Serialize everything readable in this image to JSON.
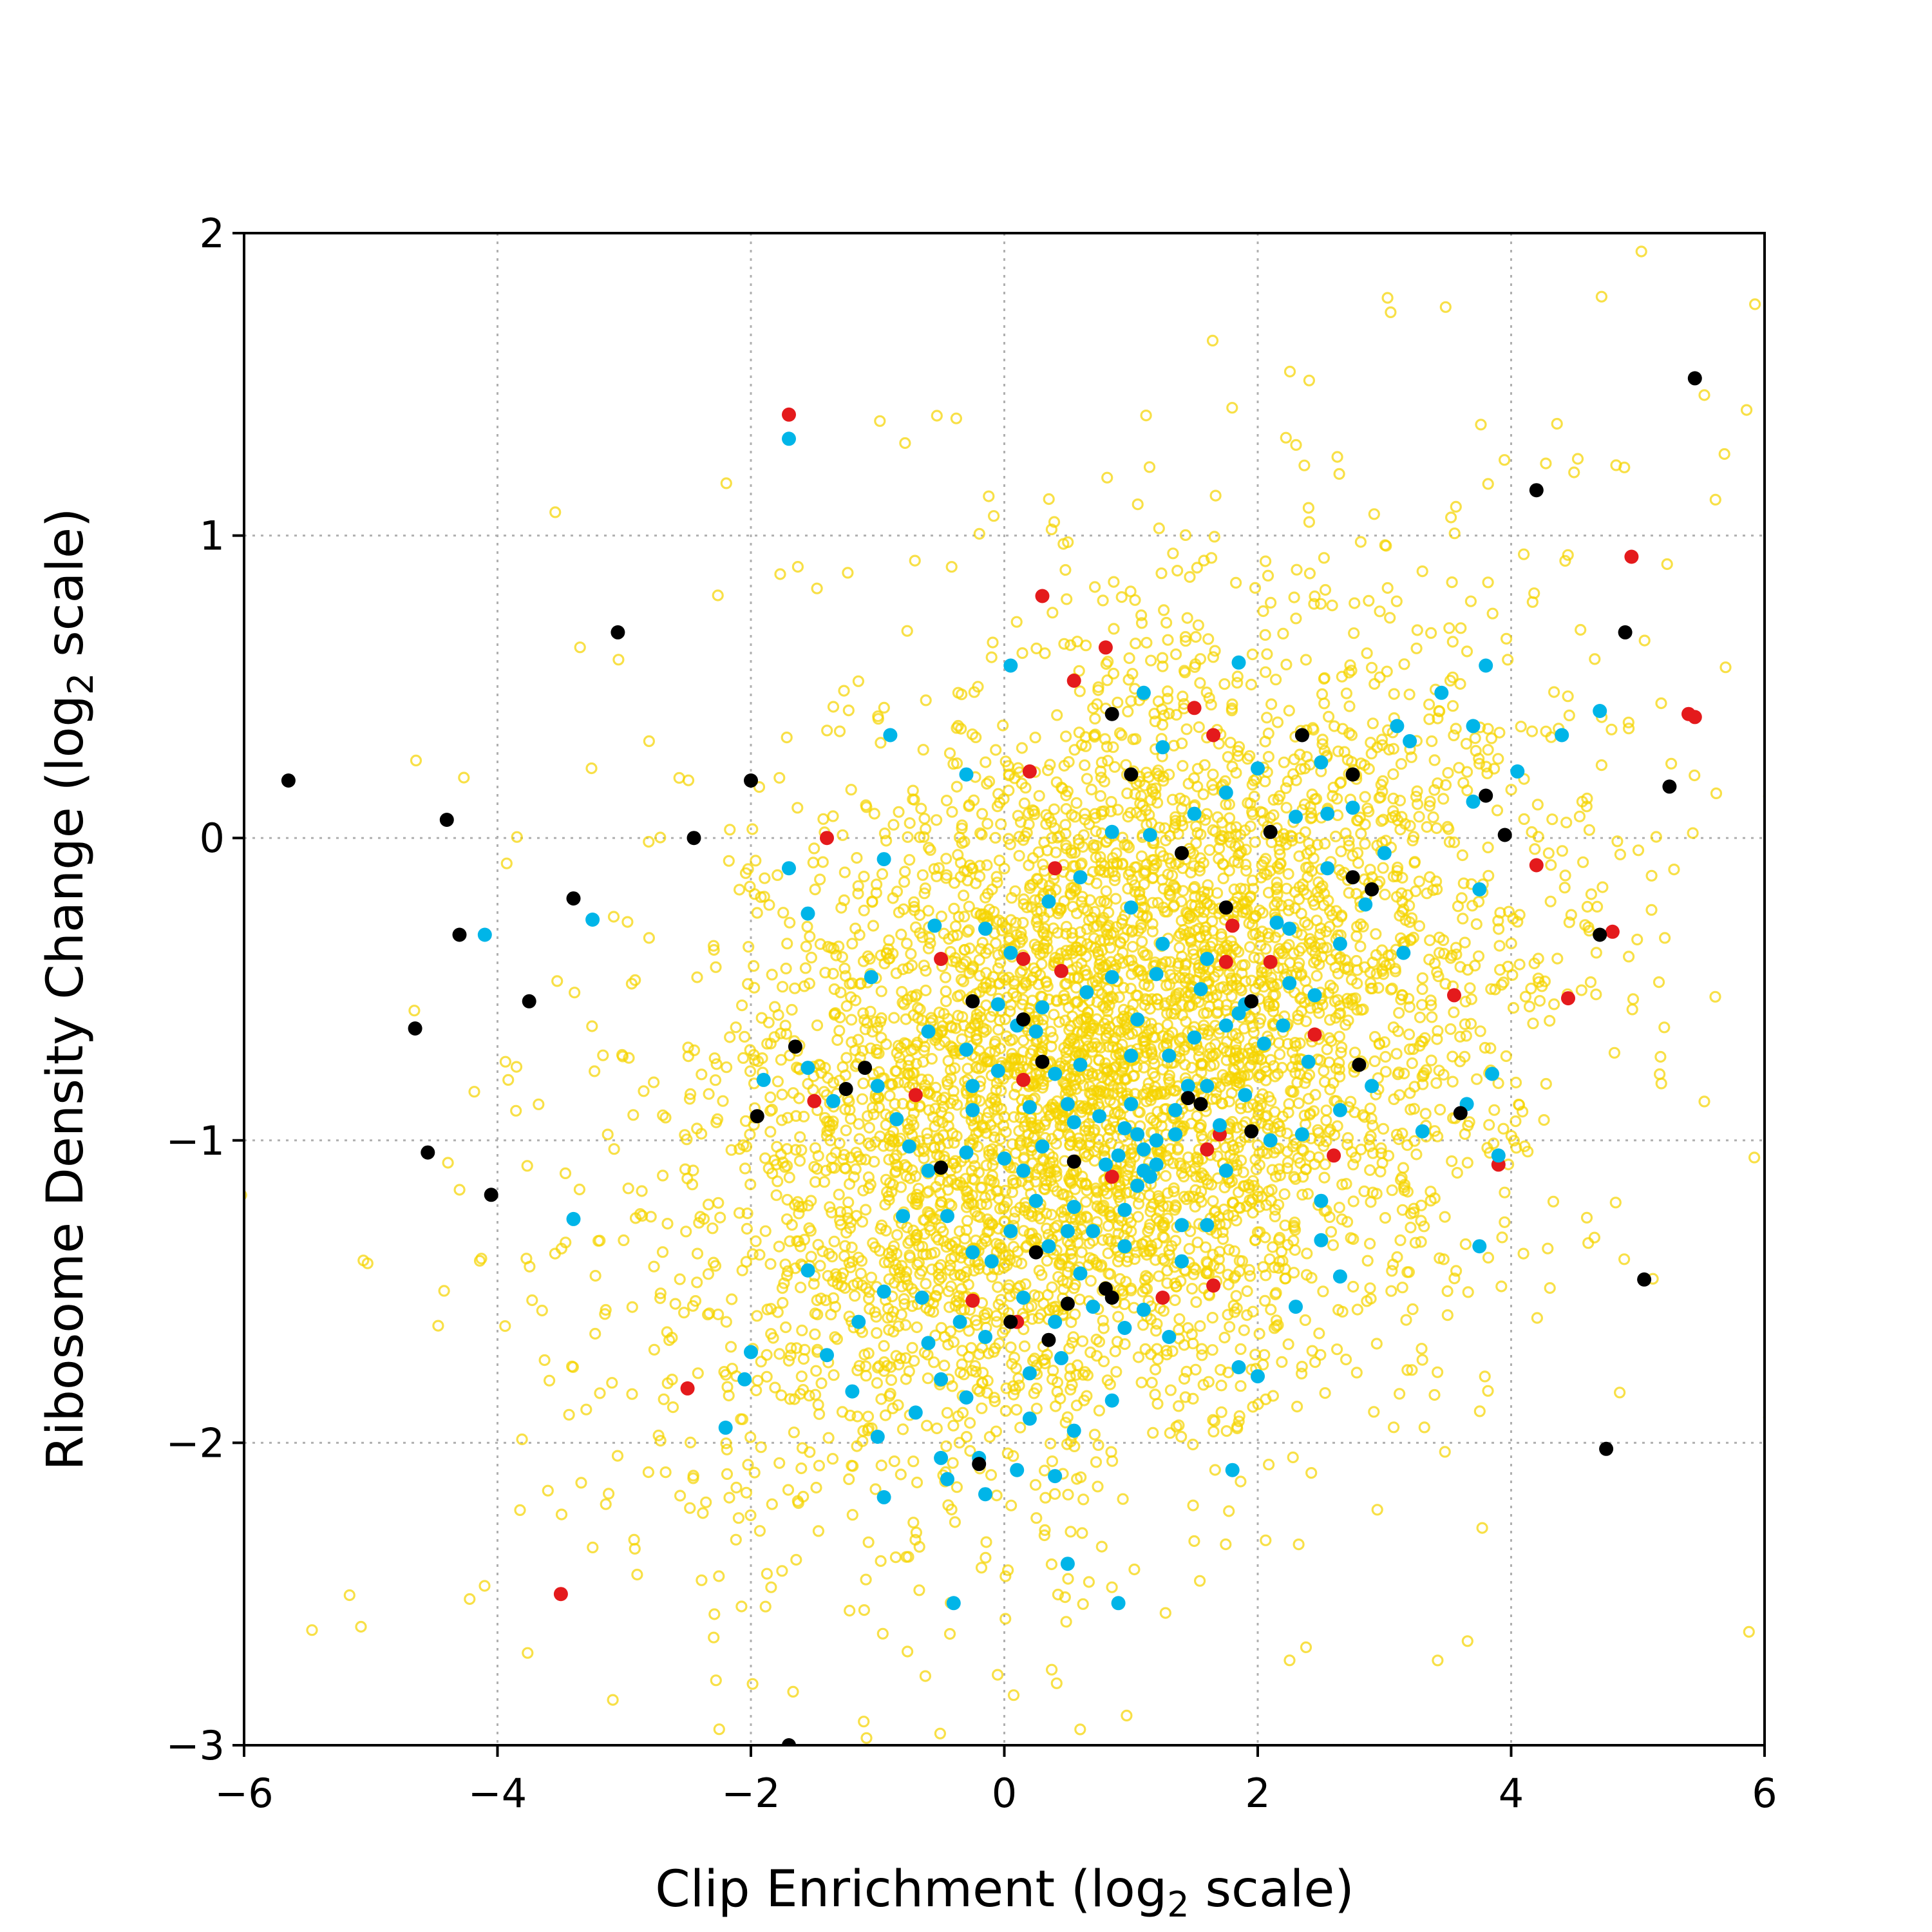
{
  "chart_data": {
    "type": "scatter",
    "title": "",
    "xlabel": "Clip Enrichment (log₂ scale)",
    "ylabel": "Ribosome Density Change (log₂ scale)",
    "xlim": [
      -6,
      6
    ],
    "ylim": [
      -3,
      2
    ],
    "xticks": [
      -6,
      -4,
      -2,
      0,
      2,
      4,
      6
    ],
    "yticks": [
      -3,
      -2,
      -1,
      0,
      1,
      2
    ],
    "xtick_labels": [
      "−6",
      "−4",
      "−2",
      "0",
      "2",
      "4",
      "6"
    ],
    "ytick_labels": [
      "−3",
      "−2",
      "−1",
      "0",
      "1",
      "2"
    ],
    "grid": true,
    "background_cloud": {
      "color": "#f5d400",
      "marker": "open-circle",
      "center": [
        0.8,
        -0.75
      ],
      "spread": [
        1.5,
        0.65
      ],
      "correlation": 0.35,
      "count": 5200
    },
    "series": [
      {
        "color": "#e41a1c",
        "points": [
          [
            -1.7,
            1.4
          ],
          [
            0.3,
            0.8
          ],
          [
            0.8,
            0.63
          ],
          [
            0.55,
            0.52
          ],
          [
            1.5,
            0.43
          ],
          [
            1.65,
            0.34
          ],
          [
            0.2,
            0.22
          ],
          [
            -1.4,
            0.0
          ],
          [
            0.4,
            -0.1
          ],
          [
            -0.5,
            -0.4
          ],
          [
            0.15,
            -0.4
          ],
          [
            0.45,
            -0.44
          ],
          [
            1.8,
            -0.29
          ],
          [
            1.75,
            -0.41
          ],
          [
            2.1,
            -0.41
          ],
          [
            2.45,
            -0.65
          ],
          [
            0.15,
            -0.8
          ],
          [
            -0.7,
            -0.85
          ],
          [
            -1.5,
            -0.87
          ],
          [
            1.7,
            -0.98
          ],
          [
            1.6,
            -1.03
          ],
          [
            0.85,
            -1.12
          ],
          [
            2.6,
            -1.05
          ],
          [
            -0.25,
            -1.53
          ],
          [
            1.25,
            -1.52
          ],
          [
            1.65,
            -1.48
          ],
          [
            -2.5,
            -1.82
          ],
          [
            -3.5,
            -2.5
          ],
          [
            3.55,
            -0.52
          ],
          [
            4.2,
            -0.09
          ],
          [
            4.45,
            -0.53
          ],
          [
            4.8,
            -0.31
          ],
          [
            3.9,
            -1.08
          ],
          [
            5.4,
            0.41
          ],
          [
            5.45,
            0.4
          ],
          [
            4.95,
            0.93
          ],
          [
            0.1,
            -1.6
          ]
        ]
      },
      {
        "color": "#00b5e8",
        "points": [
          [
            -1.7,
            1.32
          ],
          [
            0.05,
            0.57
          ],
          [
            1.1,
            0.48
          ],
          [
            1.85,
            0.58
          ],
          [
            -0.9,
            0.34
          ],
          [
            -0.3,
            0.21
          ],
          [
            3.8,
            0.57
          ],
          [
            3.45,
            0.48
          ],
          [
            4.4,
            0.34
          ],
          [
            4.7,
            0.42
          ],
          [
            3.7,
            0.37
          ],
          [
            4.05,
            0.22
          ],
          [
            3.2,
            0.32
          ],
          [
            3.1,
            0.37
          ],
          [
            -1.7,
            -0.1
          ],
          [
            -4.1,
            -0.32
          ],
          [
            -3.25,
            -0.27
          ],
          [
            -1.55,
            -0.25
          ],
          [
            -0.95,
            -0.07
          ],
          [
            -1.05,
            -0.46
          ],
          [
            -0.6,
            -0.64
          ],
          [
            -0.55,
            -0.29
          ],
          [
            -0.3,
            -0.7
          ],
          [
            -1.9,
            -0.8
          ],
          [
            -1.35,
            -0.87
          ],
          [
            -1.55,
            -0.76
          ],
          [
            -0.85,
            -0.93
          ],
          [
            -0.75,
            -1.02
          ],
          [
            -1.55,
            -1.43
          ],
          [
            -1.4,
            -1.71
          ],
          [
            -1.0,
            -1.98
          ],
          [
            -0.95,
            -2.18
          ],
          [
            -0.45,
            -2.12
          ],
          [
            -0.15,
            -2.17
          ],
          [
            0.1,
            -2.09
          ],
          [
            0.4,
            -2.11
          ],
          [
            0.55,
            -1.96
          ],
          [
            0.85,
            -1.86
          ],
          [
            -2.0,
            -1.7
          ],
          [
            -2.2,
            -1.95
          ],
          [
            -2.05,
            -1.79
          ],
          [
            -3.4,
            -1.26
          ],
          [
            -0.4,
            -2.53
          ],
          [
            0.5,
            -2.4
          ],
          [
            0.9,
            -2.53
          ],
          [
            3.75,
            -1.35
          ],
          [
            3.85,
            -0.78
          ],
          [
            3.65,
            -0.88
          ],
          [
            3.9,
            -1.05
          ],
          [
            3.3,
            -0.97
          ],
          [
            3.75,
            -0.17
          ],
          [
            3.7,
            0.12
          ],
          [
            1.8,
            -2.09
          ],
          [
            1.4,
            -1.4
          ],
          [
            2.3,
            -1.55
          ],
          [
            2.5,
            -1.33
          ],
          [
            2.65,
            -1.45
          ],
          [
            2.5,
            -1.2
          ],
          [
            1.85,
            -1.75
          ],
          [
            2.0,
            -1.78
          ],
          [
            -0.5,
            -1.79
          ],
          [
            0.2,
            -1.77
          ],
          [
            0.6,
            -1.44
          ],
          [
            1.1,
            -1.56
          ],
          [
            0.05,
            -1.3
          ],
          [
            0.25,
            -1.2
          ],
          [
            0.55,
            -1.22
          ],
          [
            0.95,
            -1.23
          ],
          [
            1.2,
            -1.08
          ],
          [
            1.35,
            -0.98
          ],
          [
            0.75,
            -0.92
          ],
          [
            0.5,
            -0.88
          ],
          [
            0.2,
            -0.89
          ],
          [
            -0.05,
            -0.77
          ],
          [
            0.1,
            -0.62
          ],
          [
            0.3,
            -0.56
          ],
          [
            0.65,
            -0.51
          ],
          [
            0.85,
            -0.46
          ],
          [
            1.05,
            -0.6
          ],
          [
            1.3,
            -0.72
          ],
          [
            1.5,
            -0.66
          ],
          [
            1.75,
            -0.62
          ],
          [
            1.9,
            -0.55
          ],
          [
            2.05,
            -0.68
          ],
          [
            2.25,
            -0.48
          ],
          [
            2.45,
            -0.52
          ],
          [
            2.65,
            -0.35
          ],
          [
            2.85,
            -0.22
          ],
          [
            2.55,
            -0.1
          ],
          [
            2.3,
            0.07
          ],
          [
            2.0,
            0.23
          ],
          [
            1.75,
            0.15
          ],
          [
            1.5,
            0.08
          ],
          [
            1.15,
            0.01
          ],
          [
            0.85,
            0.02
          ],
          [
            0.6,
            -0.13
          ],
          [
            0.35,
            -0.21
          ],
          [
            0.05,
            -0.38
          ],
          [
            -0.15,
            -0.3
          ],
          [
            1.0,
            -0.23
          ],
          [
            1.25,
            -0.35
          ],
          [
            1.6,
            -0.4
          ],
          [
            2.15,
            -0.28
          ],
          [
            2.4,
            -0.74
          ],
          [
            2.65,
            -0.9
          ],
          [
            2.1,
            -1.0
          ],
          [
            1.9,
            -0.85
          ],
          [
            1.7,
            -0.95
          ],
          [
            1.15,
            -1.12
          ],
          [
            0.95,
            -1.35
          ],
          [
            0.7,
            -1.55
          ],
          [
            0.45,
            -1.72
          ],
          [
            0.15,
            -1.52
          ],
          [
            -0.1,
            -1.4
          ],
          [
            -0.35,
            -1.6
          ],
          [
            -0.65,
            -1.52
          ],
          [
            -0.8,
            -1.25
          ],
          [
            -0.6,
            -1.1
          ],
          [
            -0.3,
            -1.04
          ],
          [
            0.0,
            -1.06
          ],
          [
            0.3,
            -1.02
          ],
          [
            0.55,
            -0.94
          ],
          [
            1.0,
            -0.88
          ],
          [
            1.45,
            -0.82
          ],
          [
            2.35,
            -0.98
          ],
          [
            2.9,
            -0.82
          ],
          [
            3.15,
            -0.38
          ],
          [
            3.0,
            -0.05
          ],
          [
            2.75,
            0.1
          ],
          [
            2.5,
            0.25
          ],
          [
            1.25,
            0.3
          ],
          [
            -0.3,
            -1.85
          ],
          [
            -0.15,
            -1.65
          ],
          [
            0.35,
            -1.35
          ],
          [
            0.8,
            -1.08
          ],
          [
            1.05,
            -0.98
          ],
          [
            1.1,
            -1.03
          ],
          [
            1.15,
            -1.12
          ],
          [
            0.95,
            -0.96
          ],
          [
            0.6,
            -0.75
          ],
          [
            0.25,
            -0.64
          ],
          [
            -0.05,
            -0.55
          ],
          [
            -0.25,
            -0.9
          ],
          [
            -0.45,
            -1.25
          ],
          [
            -0.95,
            -1.5
          ],
          [
            -1.2,
            -1.83
          ],
          [
            -0.7,
            -1.9
          ],
          [
            -0.2,
            -2.05
          ],
          [
            0.4,
            -1.6
          ],
          [
            1.3,
            -1.65
          ],
          [
            1.6,
            -1.28
          ],
          [
            1.75,
            -1.1
          ],
          [
            2.2,
            -0.62
          ],
          [
            1.55,
            -0.5
          ],
          [
            1.2,
            -0.45
          ],
          [
            0.5,
            -1.3
          ],
          [
            0.7,
            -1.3
          ],
          [
            0.15,
            -1.1
          ],
          [
            -0.25,
            -1.37
          ],
          [
            -0.6,
            -1.67
          ],
          [
            -1.15,
            -1.6
          ],
          [
            -1.0,
            -0.82
          ],
          [
            -0.25,
            -0.82
          ],
          [
            0.4,
            -0.78
          ],
          [
            1.0,
            -0.72
          ],
          [
            1.35,
            -0.9
          ],
          [
            2.25,
            -0.3
          ],
          [
            2.55,
            0.08
          ],
          [
            1.85,
            -0.58
          ],
          [
            1.6,
            -0.82
          ],
          [
            1.4,
            -1.28
          ],
          [
            0.95,
            -1.62
          ],
          [
            0.2,
            -1.92
          ],
          [
            -0.5,
            -2.05
          ],
          [
            1.05,
            -1.15
          ],
          [
            1.1,
            -1.1
          ],
          [
            1.2,
            -1.0
          ],
          [
            0.9,
            -1.05
          ]
        ]
      },
      {
        "color": "#000000",
        "points": [
          [
            -5.65,
            0.19
          ],
          [
            -4.4,
            0.06
          ],
          [
            -3.05,
            0.68
          ],
          [
            -2.45,
            0.0
          ],
          [
            -2.0,
            0.19
          ],
          [
            -3.4,
            -0.2
          ],
          [
            -4.3,
            -0.32
          ],
          [
            -3.75,
            -0.54
          ],
          [
            -4.65,
            -0.63
          ],
          [
            -4.55,
            -1.04
          ],
          [
            -4.05,
            -1.18
          ],
          [
            -1.65,
            -0.69
          ],
          [
            -1.95,
            -0.92
          ],
          [
            -1.25,
            -0.83
          ],
          [
            -1.1,
            -0.76
          ],
          [
            -0.5,
            -1.09
          ],
          [
            -0.25,
            -0.54
          ],
          [
            0.15,
            -0.6
          ],
          [
            0.3,
            -0.74
          ],
          [
            0.55,
            -1.07
          ],
          [
            0.25,
            -1.37
          ],
          [
            0.05,
            -1.6
          ],
          [
            0.35,
            -1.66
          ],
          [
            0.5,
            -1.54
          ],
          [
            0.8,
            -1.49
          ],
          [
            0.85,
            -1.52
          ],
          [
            -0.2,
            -2.07
          ],
          [
            0.85,
            0.41
          ],
          [
            1.0,
            0.21
          ],
          [
            1.4,
            -0.05
          ],
          [
            1.75,
            -0.23
          ],
          [
            1.95,
            -0.54
          ],
          [
            1.45,
            -0.86
          ],
          [
            1.55,
            -0.88
          ],
          [
            1.95,
            -0.97
          ],
          [
            2.1,
            0.02
          ],
          [
            2.35,
            0.34
          ],
          [
            2.75,
            0.21
          ],
          [
            2.75,
            -0.13
          ],
          [
            2.9,
            -0.17
          ],
          [
            2.8,
            -0.75
          ],
          [
            3.6,
            -0.91
          ],
          [
            3.8,
            0.14
          ],
          [
            3.95,
            0.01
          ],
          [
            4.2,
            1.15
          ],
          [
            4.7,
            -0.32
          ],
          [
            4.9,
            0.68
          ],
          [
            5.25,
            0.17
          ],
          [
            5.05,
            -1.46
          ],
          [
            4.75,
            -2.02
          ],
          [
            5.45,
            1.52
          ],
          [
            -1.7,
            -3.0
          ]
        ]
      }
    ]
  }
}
